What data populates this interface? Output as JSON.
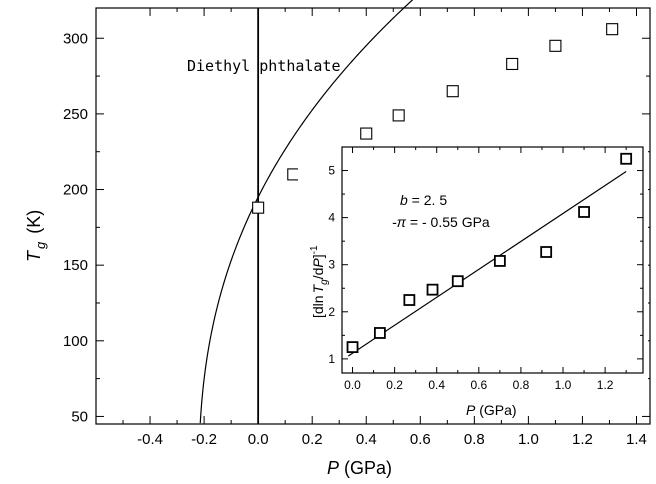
{
  "chart_data": [
    {
      "type": "scatter",
      "title": "",
      "annotation": "Diethyl phthalate",
      "xlabel": "P (GPa)",
      "xlabel_parts": {
        "var": "P",
        "unit": " (GPa)"
      },
      "ylabel_parts": {
        "var": "T",
        "sub": "g",
        "unit": "(K)"
      },
      "xlim": [
        -0.6,
        1.45
      ],
      "ylim": [
        45,
        320
      ],
      "xticks": [
        -0.4,
        -0.2,
        0.0,
        0.2,
        0.4,
        0.6,
        0.8,
        1.0,
        1.2,
        1.4
      ],
      "xtick_labels": [
        "-0.4",
        "-0.2",
        "0.0",
        "0.2",
        "0.4",
        "0.6",
        "0.8",
        "1.0",
        "1.2",
        "1.4"
      ],
      "yticks": [
        50,
        100,
        150,
        200,
        250,
        300
      ],
      "ytick_labels": [
        "50",
        "100",
        "150",
        "200",
        "250",
        "300"
      ],
      "vertical_line_x": 0.0,
      "series": [
        {
          "marker": "open-square",
          "x": [
            0.0,
            0.13,
            0.27,
            0.4,
            0.52,
            0.72,
            0.94,
            1.1,
            1.31
          ],
          "y": [
            188,
            210,
            226,
            237,
            249,
            265,
            283,
            295,
            306
          ]
        }
      ],
      "fit_curve": {
        "form": "T = T0 * (1 + b*P/pi)^(1/b)",
        "T0": 195,
        "b": 2.5,
        "pi": 0.55
      }
    },
    {
      "type": "scatter",
      "title": "",
      "xlabel_parts": {
        "var": "P",
        "unit": " (GPa)"
      },
      "ylabel_parts": {
        "pre": "[dln",
        "var": "T",
        "sub": "g",
        "mid": "/d",
        "var2": "P",
        "post": "]",
        "sup": "-1"
      },
      "xlim": [
        -0.05,
        1.38
      ],
      "ylim": [
        0.7,
        5.5
      ],
      "xticks": [
        0.0,
        0.2,
        0.4,
        0.6,
        0.8,
        1.0,
        1.2
      ],
      "xtick_labels": [
        "0.0",
        "0.2",
        "0.4",
        "0.6",
        "0.8",
        "1.0",
        "1.2"
      ],
      "yticks": [
        1,
        2,
        3,
        4,
        5
      ],
      "ytick_labels": [
        "1",
        "2",
        "3",
        "4",
        "5"
      ],
      "annotations": [
        {
          "var": "b",
          "text": " = 2. 5"
        },
        {
          "var": "-π",
          "text": " = - 0.55 GPa"
        }
      ],
      "series": [
        {
          "marker": "open-square",
          "x": [
            0.0,
            0.13,
            0.27,
            0.38,
            0.5,
            0.7,
            0.92,
            1.1,
            1.3
          ],
          "y": [
            1.25,
            1.55,
            2.25,
            2.47,
            2.65,
            3.08,
            3.27,
            4.12,
            5.25
          ]
        }
      ],
      "fit_line": {
        "x": [
          -0.02,
          1.3
        ],
        "y": [
          1.06,
          4.98
        ]
      }
    }
  ]
}
